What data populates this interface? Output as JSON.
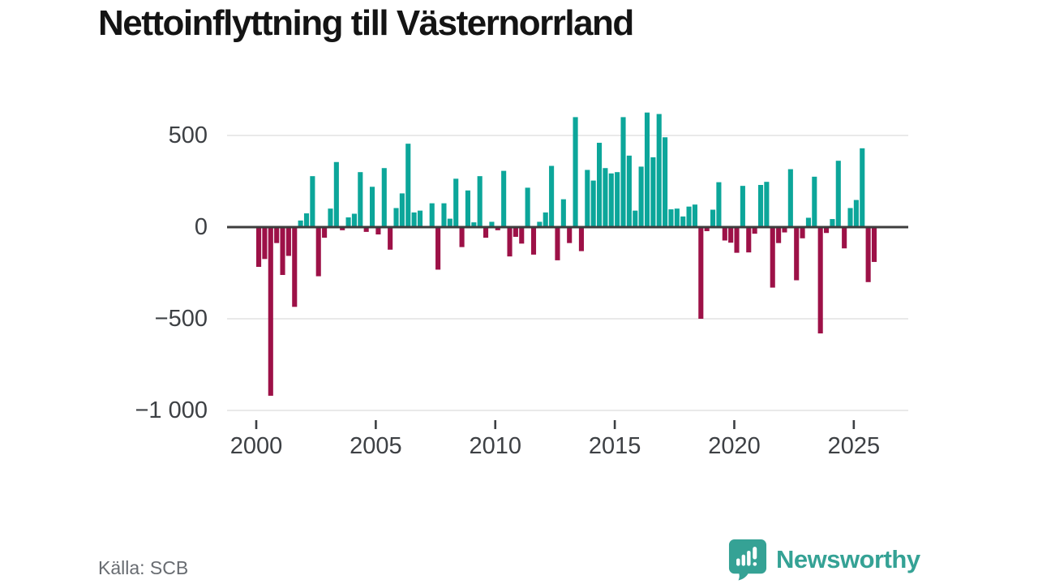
{
  "title": "Nettoinflyttning till Västernorrland",
  "source": {
    "label": "Källa: SCB"
  },
  "brand": {
    "name": "Newsworthy",
    "icon": "newsworthy-badge-bar-chart-exclamation-icon",
    "color": "#35a295"
  },
  "chart_data": {
    "type": "bar",
    "title": "Nettoinflyttning till Västernorrland",
    "frequency": "quarterly",
    "start_period": "2000Q1",
    "end_period": "2025Q4",
    "unit": "net migration, persons per quarter",
    "series": [
      {
        "name": "Nettoinflyttning",
        "start": "2000Q1",
        "values": [
          -217,
          -174,
          -920,
          -87,
          -261,
          -157,
          -435,
          36,
          75,
          278,
          -268,
          -58,
          101,
          355,
          -17,
          53,
          73,
          300,
          -26,
          220,
          -40,
          322,
          -123,
          104,
          184,
          455,
          80,
          90,
          0,
          130,
          -232,
          130,
          46,
          264,
          -109,
          200,
          26,
          278,
          -58,
          29,
          -17,
          307,
          -160,
          -53,
          -90,
          215,
          -150,
          29,
          80,
          334,
          -181,
          152,
          -87,
          600,
          -131,
          312,
          254,
          460,
          322,
          293,
          300,
          600,
          390,
          90,
          330,
          625,
          381,
          617,
          490,
          97,
          101,
          58,
          112,
          123,
          -500,
          -22,
          95,
          245,
          -73,
          -85,
          -140,
          225,
          -138,
          -36,
          230,
          247,
          -330,
          -87,
          -29,
          316,
          -290,
          -61,
          51,
          275,
          -580,
          -32,
          44,
          362,
          -116,
          104,
          148,
          430,
          -300,
          -190
        ]
      }
    ],
    "x_tick_labels": [
      "2000",
      "2005",
      "2010",
      "2015",
      "2020",
      "2025"
    ],
    "x_tick_years": [
      2000,
      2005,
      2010,
      2015,
      2020,
      2025
    ],
    "y_tick_labels": [
      "500",
      "0",
      "−500",
      "−1 000"
    ],
    "y_tick_values": [
      500,
      0,
      -500,
      -1000
    ],
    "gridline_values": [
      500,
      -500,
      -1000
    ],
    "ylim": [
      -1000,
      660
    ],
    "grid": "horizontal-light",
    "legend": false,
    "colors": {
      "positive": "#0ca69a",
      "negative": "#9d1147",
      "baseline": "#3d3d3d",
      "gridline": "#e2e2e2"
    }
  }
}
